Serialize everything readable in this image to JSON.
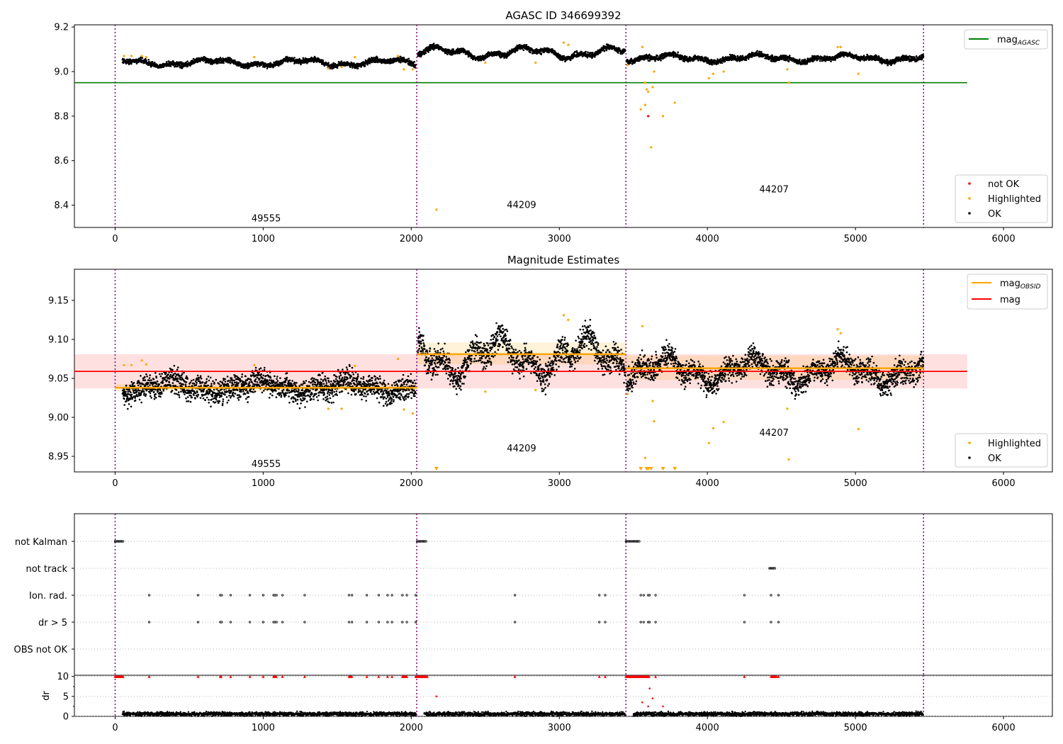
{
  "chart_data": [
    {
      "type": "scatter",
      "title": "AGASC ID 346699392",
      "xlim": [
        -275,
        6330
      ],
      "ylim": [
        8.3,
        9.21
      ],
      "x_ticks": [
        0,
        1000,
        2000,
        3000,
        4000,
        5000,
        6000
      ],
      "y_ticks": [
        8.4,
        8.6,
        8.8,
        9.0,
        9.2
      ],
      "obsid_boundaries": [
        0,
        2037,
        3450,
        5460
      ],
      "obsid_labels": [
        {
          "label": "49555",
          "x": 1020,
          "y": 8.34
        },
        {
          "label": "44209",
          "x": 2745,
          "y": 8.4
        },
        {
          "label": "44207",
          "x": 4450,
          "y": 8.47
        }
      ],
      "reference_lines": [
        {
          "name": "mag",
          "sub": "AGASC",
          "y": 8.95,
          "x_range": [
            -275,
            5755
          ],
          "color": "#008000"
        }
      ],
      "series": [
        {
          "name": "OK",
          "color": "#000000",
          "segments": [
            {
              "x_range": [
                50,
                2030
              ],
              "base": 9.04,
              "amp": 0.012,
              "noise": 0.008
            },
            {
              "x_range": [
                2045,
                3445
              ],
              "base": 9.085,
              "amp": 0.018,
              "noise": 0.008
            },
            {
              "x_range": [
                3455,
                5460
              ],
              "base": 9.06,
              "amp": 0.012,
              "noise": 0.008
            }
          ]
        },
        {
          "name": "Highlighted",
          "color": "#ffa500",
          "points": [
            [
              60,
              9.07
            ],
            [
              110,
              9.07
            ],
            [
              180,
              9.07
            ],
            [
              210,
              9.065
            ],
            [
              940,
              9.065
            ],
            [
              1440,
              9.015
            ],
            [
              1530,
              9.02
            ],
            [
              1620,
              9.065
            ],
            [
              1910,
              9.07
            ],
            [
              1950,
              9.01
            ],
            [
              2010,
              9.01
            ],
            [
              2170,
              8.38
            ],
            [
              2500,
              9.04
            ],
            [
              2840,
              9.04
            ],
            [
              3030,
              9.13
            ],
            [
              3060,
              9.12
            ],
            [
              3460,
              9.03
            ],
            [
              3550,
              8.83
            ],
            [
              3560,
              9.11
            ],
            [
              3580,
              8.85
            ],
            [
              3580,
              8.95
            ],
            [
              3590,
              8.92
            ],
            [
              3600,
              8.91
            ],
            [
              3620,
              8.66
            ],
            [
              3630,
              8.93
            ],
            [
              3640,
              9.0
            ],
            [
              3700,
              8.8
            ],
            [
              3780,
              8.86
            ],
            [
              4010,
              8.97
            ],
            [
              4040,
              8.99
            ],
            [
              4110,
              9.0
            ],
            [
              4540,
              9.01
            ],
            [
              4550,
              8.95
            ],
            [
              4880,
              9.11
            ],
            [
              4900,
              9.11
            ],
            [
              5020,
              8.99
            ]
          ]
        },
        {
          "name": "not OK",
          "color": "#ff0000",
          "points": [
            [
              3600,
              8.8
            ]
          ]
        }
      ],
      "legend_upper": [
        {
          "name": "mag",
          "sub": "AGASC",
          "marker": "line",
          "color": "#008000"
        }
      ],
      "legend_lower": [
        {
          "name": "not OK",
          "marker": "dot",
          "color": "#ff0000"
        },
        {
          "name": "Highlighted",
          "marker": "dot",
          "color": "#ffa500"
        },
        {
          "name": "OK",
          "marker": "dot",
          "color": "#000000"
        }
      ]
    },
    {
      "type": "scatter",
      "title": "Magnitude Estimates",
      "xlim": [
        -275,
        6330
      ],
      "ylim": [
        8.93,
        9.19
      ],
      "x_ticks": [
        0,
        1000,
        2000,
        3000,
        4000,
        5000,
        6000
      ],
      "y_ticks": [
        8.95,
        9.0,
        9.05,
        9.1,
        9.15
      ],
      "obsid_boundaries": [
        0,
        2037,
        3450,
        5460
      ],
      "obsid_labels": [
        {
          "label": "49555",
          "x": 1020,
          "y": 8.94
        },
        {
          "label": "44209",
          "x": 2745,
          "y": 8.96
        },
        {
          "label": "44207",
          "x": 4450,
          "y": 8.98
        }
      ],
      "reference_lines": [
        {
          "name": "mag",
          "y": 9.059,
          "x_range": [
            -275,
            5755
          ],
          "color": "#ff0000",
          "band": [
            9.037,
            9.081
          ]
        }
      ],
      "obsid_mags": [
        {
          "x_range": [
            0,
            2037
          ],
          "y": 9.038,
          "band": [
            9.033,
            9.043
          ]
        },
        {
          "x_range": [
            2037,
            3450
          ],
          "y": 9.081,
          "band": [
            9.068,
            9.096
          ]
        },
        {
          "x_range": [
            3450,
            5460
          ],
          "y": 9.063,
          "band": [
            9.048,
            9.079
          ]
        }
      ],
      "series": [
        {
          "name": "OK",
          "color": "#000000",
          "segments": [
            {
              "x_range": [
                50,
                2030
              ],
              "base": 9.039,
              "amp": 0.006,
              "noise": 0.011
            },
            {
              "x_range": [
                2045,
                3445
              ],
              "base": 9.078,
              "amp": 0.018,
              "noise": 0.012
            },
            {
              "x_range": [
                3455,
                5460
              ],
              "base": 9.06,
              "amp": 0.012,
              "noise": 0.011
            }
          ]
        },
        {
          "name": "Highlighted",
          "color": "#ffa500",
          "points": [
            [
              60,
              9.067
            ],
            [
              110,
              9.067
            ],
            [
              180,
              9.073
            ],
            [
              210,
              9.068
            ],
            [
              940,
              9.067
            ],
            [
              1440,
              9.011
            ],
            [
              1530,
              9.011
            ],
            [
              1620,
              9.066
            ],
            [
              1910,
              9.075
            ],
            [
              1950,
              9.01
            ],
            [
              2010,
              9.005
            ],
            [
              2170,
              8.933
            ],
            [
              2500,
              9.033
            ],
            [
              2840,
              9.035
            ],
            [
              3030,
              9.131
            ],
            [
              3060,
              9.125
            ],
            [
              3460,
              9.03
            ],
            [
              3550,
              8.933
            ],
            [
              3560,
              9.117
            ],
            [
              3580,
              8.948
            ],
            [
              3590,
              8.933
            ],
            [
              3600,
              8.933
            ],
            [
              3620,
              8.933
            ],
            [
              3630,
              9.021
            ],
            [
              3640,
              8.995
            ],
            [
              3700,
              8.933
            ],
            [
              3780,
              8.933
            ],
            [
              4010,
              8.967
            ],
            [
              4040,
              8.986
            ],
            [
              4110,
              8.994
            ],
            [
              4540,
              9.011
            ],
            [
              4550,
              8.946
            ],
            [
              4880,
              9.113
            ],
            [
              4900,
              9.108
            ],
            [
              5020,
              8.985
            ]
          ]
        }
      ],
      "legend_upper": [
        {
          "name": "mag",
          "sub": "OBSID",
          "marker": "line",
          "color": "#ffa500"
        },
        {
          "name": "mag",
          "marker": "line",
          "color": "#ff0000"
        }
      ],
      "legend_lower": [
        {
          "name": "Highlighted",
          "marker": "dot",
          "color": "#ffa500"
        },
        {
          "name": "OK",
          "marker": "dot",
          "color": "#000000"
        }
      ]
    },
    {
      "type": "scatter",
      "xlim": [
        -275,
        6330
      ],
      "x_ticks": [
        0,
        1000,
        2000,
        3000,
        4000,
        5000,
        6000
      ],
      "flag_rows": [
        "not Kalman",
        "not track",
        "Ion. rad.",
        "dr > 5",
        "OBS not OK"
      ],
      "obsid_boundaries": [
        0,
        2037,
        3450,
        5460
      ],
      "flags": {
        "not Kalman": [
          [
            0,
            55
          ],
          [
            2040,
            2105
          ],
          [
            3450,
            3540
          ]
        ],
        "not track": [
          [
            4420,
            4460
          ]
        ],
        "Ion. rad.": [
          230,
          560,
          710,
          720,
          780,
          910,
          1000,
          1070,
          1080,
          1090,
          1130,
          1280,
          1580,
          1600,
          1700,
          1780,
          1840,
          1870,
          1940,
          1970,
          2030,
          2700,
          3270,
          3310,
          3550,
          3570,
          3600,
          3610,
          3650,
          4250,
          4430,
          4480
        ],
        "dr > 5": [
          230,
          560,
          710,
          720,
          780,
          910,
          1000,
          1070,
          1080,
          1090,
          1130,
          1280,
          1580,
          1600,
          1700,
          1780,
          1840,
          1870,
          1940,
          1970,
          2030,
          2700,
          3270,
          3310,
          3550,
          3570,
          3600,
          3610,
          3650,
          4250,
          4430,
          4480
        ],
        "OBS not OK": []
      },
      "dr": {
        "ylabel": "dr",
        "ylim": [
          0,
          10.3
        ],
        "y_ticks": [
          0,
          5,
          10
        ],
        "series_color": "#000000",
        "clipped_color": "#ff0000",
        "clipped_value": 10,
        "clipped": [
          [
            0,
            55
          ],
          [
            230,
            230
          ],
          [
            560,
            560
          ],
          [
            710,
            720
          ],
          [
            780,
            780
          ],
          [
            910,
            910
          ],
          [
            1000,
            1000
          ],
          [
            1070,
            1090
          ],
          [
            1130,
            1130
          ],
          [
            1280,
            1280
          ],
          [
            1580,
            1600
          ],
          [
            1700,
            1700
          ],
          [
            1780,
            1780
          ],
          [
            1840,
            1840
          ],
          [
            1870,
            1870
          ],
          [
            1940,
            1970
          ],
          [
            2030,
            2110
          ],
          [
            2700,
            2700
          ],
          [
            3270,
            3270
          ],
          [
            3310,
            3310
          ],
          [
            3450,
            3610
          ],
          [
            3650,
            3650
          ],
          [
            4250,
            4250
          ],
          [
            4430,
            4470
          ],
          [
            4480,
            4480
          ]
        ],
        "highlighted": [
          [
            2170,
            5
          ],
          [
            3560,
            3.5
          ],
          [
            3600,
            2.5
          ],
          [
            3610,
            7
          ],
          [
            3630,
            4.5
          ],
          [
            3700,
            2.5
          ]
        ]
      }
    }
  ]
}
